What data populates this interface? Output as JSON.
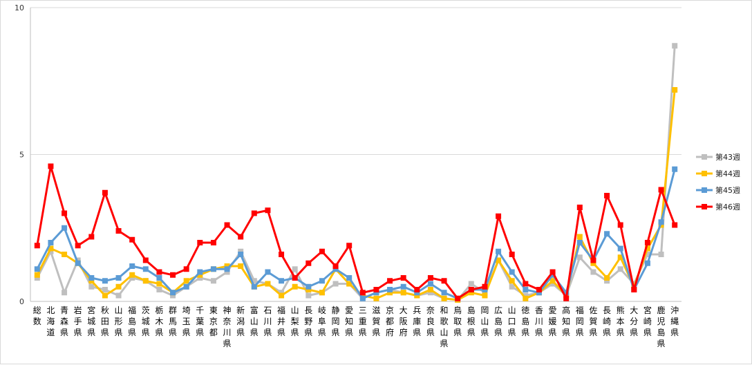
{
  "chart_data": {
    "type": "line",
    "title": "",
    "xlabel": "",
    "ylabel": "",
    "ylim": [
      0,
      10
    ],
    "yticks": [
      0,
      5,
      10
    ],
    "grid": true,
    "legend_position": "right",
    "categories": [
      "総数",
      "北海道",
      "青森県",
      "岩手県",
      "宮城県",
      "秋田県",
      "山形県",
      "福島県",
      "茨城県",
      "栃木県",
      "群馬県",
      "埼玉県",
      "千葉県",
      "東京都",
      "神奈川県",
      "新潟県",
      "富山県",
      "石川県",
      "福井県",
      "山梨県",
      "長野県",
      "岐阜県",
      "静岡県",
      "愛知県",
      "三重県",
      "滋賀県",
      "京都府",
      "大阪府",
      "兵庫県",
      "奈良県",
      "和歌山県",
      "鳥取県",
      "島根県",
      "岡山県",
      "広島県",
      "山口県",
      "徳島県",
      "香川県",
      "愛媛県",
      "高知県",
      "福岡県",
      "佐賀県",
      "長崎県",
      "熊本県",
      "大分県",
      "宮崎県",
      "鹿児島県",
      "沖縄県"
    ],
    "series": [
      {
        "name": "第43週",
        "color": "#bfbfbf",
        "values": [
          0.8,
          1.7,
          0.3,
          1.4,
          0.5,
          0.4,
          0.2,
          0.8,
          0.7,
          0.4,
          0.2,
          0.5,
          0.8,
          0.7,
          1.0,
          1.7,
          0.7,
          0.6,
          0.3,
          1.1,
          0.2,
          0.3,
          0.6,
          0.6,
          0.1,
          0.3,
          0.4,
          0.3,
          0.2,
          0.3,
          0.1,
          0.05,
          0.6,
          0.3,
          1.4,
          0.5,
          0.2,
          0.3,
          0.6,
          0.2,
          1.5,
          1.0,
          0.7,
          1.1,
          0.6,
          1.6,
          1.6,
          8.7
        ]
      },
      {
        "name": "第44週",
        "color": "#ffc000",
        "values": [
          0.9,
          1.8,
          1.6,
          1.3,
          0.7,
          0.2,
          0.5,
          0.9,
          0.7,
          0.6,
          0.3,
          0.7,
          0.9,
          1.1,
          1.2,
          1.2,
          0.5,
          0.6,
          0.2,
          0.5,
          0.4,
          0.3,
          1.1,
          0.6,
          0.2,
          0.1,
          0.3,
          0.3,
          0.2,
          0.4,
          0.1,
          0.05,
          0.3,
          0.2,
          1.4,
          0.7,
          0.1,
          0.3,
          0.7,
          0.2,
          2.2,
          1.3,
          0.8,
          1.5,
          0.5,
          1.8,
          2.6,
          7.2
        ]
      },
      {
        "name": "第45週",
        "color": "#5b9bd5",
        "values": [
          1.1,
          2.0,
          2.5,
          1.3,
          0.8,
          0.7,
          0.8,
          1.2,
          1.1,
          0.8,
          0.3,
          0.5,
          1.0,
          1.1,
          1.1,
          1.6,
          0.5,
          1.0,
          0.7,
          0.8,
          0.5,
          0.7,
          1.1,
          0.8,
          0.1,
          0.3,
          0.4,
          0.5,
          0.3,
          0.6,
          0.3,
          0.1,
          0.4,
          0.4,
          1.7,
          1.0,
          0.4,
          0.3,
          0.9,
          0.3,
          2.0,
          1.4,
          2.3,
          1.8,
          0.4,
          1.3,
          2.7,
          4.5
        ]
      },
      {
        "name": "第46週",
        "color": "#ff0000",
        "values": [
          1.9,
          4.6,
          3.0,
          1.9,
          2.2,
          3.7,
          2.4,
          2.1,
          1.4,
          1.0,
          0.9,
          1.1,
          2.0,
          2.0,
          2.6,
          2.2,
          3.0,
          3.1,
          1.6,
          0.8,
          1.3,
          1.7,
          1.2,
          1.9,
          0.3,
          0.4,
          0.7,
          0.8,
          0.4,
          0.8,
          0.7,
          0.1,
          0.4,
          0.5,
          2.9,
          1.6,
          0.6,
          0.4,
          1.0,
          0.1,
          3.2,
          1.4,
          3.6,
          2.6,
          0.4,
          2.0,
          3.8,
          2.6
        ]
      }
    ]
  }
}
